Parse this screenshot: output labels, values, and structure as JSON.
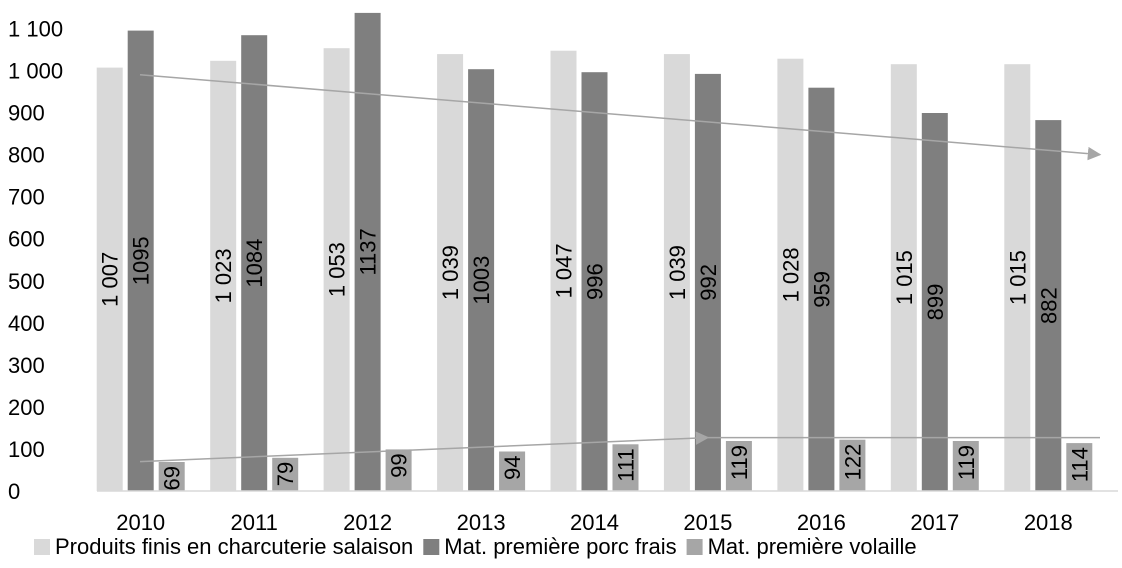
{
  "chart_data": {
    "type": "bar",
    "categories": [
      "2010",
      "2011",
      "2012",
      "2013",
      "2014",
      "2015",
      "2016",
      "2017",
      "2018"
    ],
    "series": [
      {
        "name": "Produits finis en charcuterie salaison",
        "values": [
          1007,
          1023,
          1053,
          1039,
          1047,
          1039,
          1028,
          1015,
          1015
        ],
        "labels": [
          "1 007",
          "1 023",
          "1 053",
          "1 039",
          "1 047",
          "1 039",
          "1 028",
          "1 015",
          "1 015"
        ],
        "color": "#d9d9d9"
      },
      {
        "name": "Mat. première porc frais",
        "values": [
          1095,
          1084,
          1137,
          1003,
          996,
          992,
          959,
          899,
          882
        ],
        "labels": [
          "1095",
          "1084",
          "1137",
          "1003",
          "996",
          "992",
          "959",
          "899",
          "882"
        ],
        "color": "#7f7f7f"
      },
      {
        "name": "Mat. première volaille",
        "values": [
          69,
          79,
          99,
          94,
          111,
          119,
          122,
          119,
          114
        ],
        "labels": [
          "69",
          "79",
          "99",
          "94",
          "111",
          "119",
          "122",
          "119",
          "114"
        ],
        "color": "#a6a6a6"
      }
    ],
    "yticks": [
      "0",
      "100",
      "200",
      "300",
      "400",
      "500",
      "600",
      "700",
      "800",
      "900",
      "1 000",
      "1 100"
    ],
    "ylim": [
      0,
      1137
    ],
    "grid": false,
    "legend": "bottom",
    "annotations": [
      {
        "type": "arrow",
        "from": {
          "x": "2010",
          "y": 990
        },
        "to": {
          "x": "2018",
          "y": 800
        },
        "color": "#a6a6a6"
      },
      {
        "type": "arrow",
        "from": {
          "x": "2010",
          "y": 70
        },
        "to": {
          "x": "2015",
          "y": 127
        },
        "color": "#a6a6a6"
      },
      {
        "type": "line",
        "from": {
          "x": "2015",
          "y": 127
        },
        "to": {
          "x": "2018",
          "y": 127
        },
        "color": "#a6a6a6"
      }
    ]
  }
}
